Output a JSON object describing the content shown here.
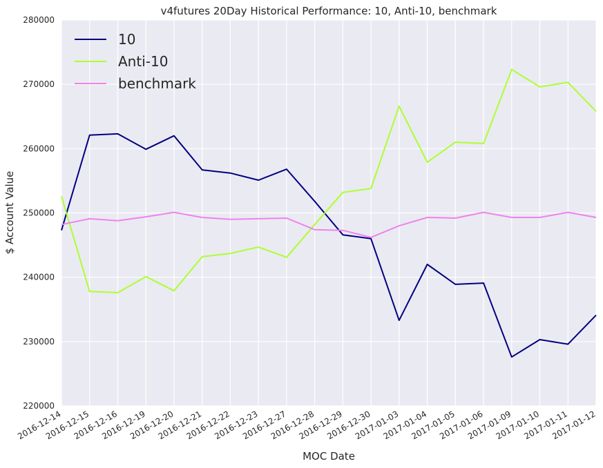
{
  "chart_data": {
    "type": "line",
    "title": "v4futures 20Day Historical Performance: 10, Anti-10, benchmark",
    "xlabel": "MOC Date",
    "ylabel": "$ Account Value",
    "ylim": [
      220000,
      280000
    ],
    "yticks": [
      220000,
      230000,
      240000,
      250000,
      260000,
      270000,
      280000
    ],
    "grid": true,
    "legend_position": "top-left",
    "categories": [
      "2016-12-14",
      "2016-12-15",
      "2016-12-16",
      "2016-12-19",
      "2016-12-20",
      "2016-12-21",
      "2016-12-22",
      "2016-12-23",
      "2016-12-27",
      "2016-12-28",
      "2016-12-29",
      "2016-12-30",
      "2017-01-03",
      "2017-01-04",
      "2017-01-05",
      "2017-01-06",
      "2017-01-09",
      "2017-01-10",
      "2017-01-11",
      "2017-01-12"
    ],
    "series": [
      {
        "name": "10",
        "color": "#000080",
        "values": [
          247300,
          262100,
          262300,
          259900,
          262000,
          256700,
          256200,
          255100,
          256800,
          251800,
          246600,
          246000,
          233300,
          242000,
          238900,
          239100,
          227600,
          230300,
          229600,
          234100
        ]
      },
      {
        "name": "Anti-10",
        "color": "#adff2f",
        "values": [
          252600,
          237800,
          237600,
          240100,
          237900,
          243200,
          243700,
          244700,
          243100,
          248200,
          253200,
          253800,
          266600,
          257900,
          261000,
          260800,
          272300,
          269600,
          270300,
          265800
        ]
      },
      {
        "name": "benchmark",
        "color": "#ee82ee",
        "values": [
          248200,
          249100,
          248800,
          249400,
          250100,
          249300,
          249000,
          249100,
          249200,
          247400,
          247300,
          246200,
          248000,
          249300,
          249200,
          250100,
          249300,
          249300,
          250100,
          249300
        ]
      }
    ]
  }
}
